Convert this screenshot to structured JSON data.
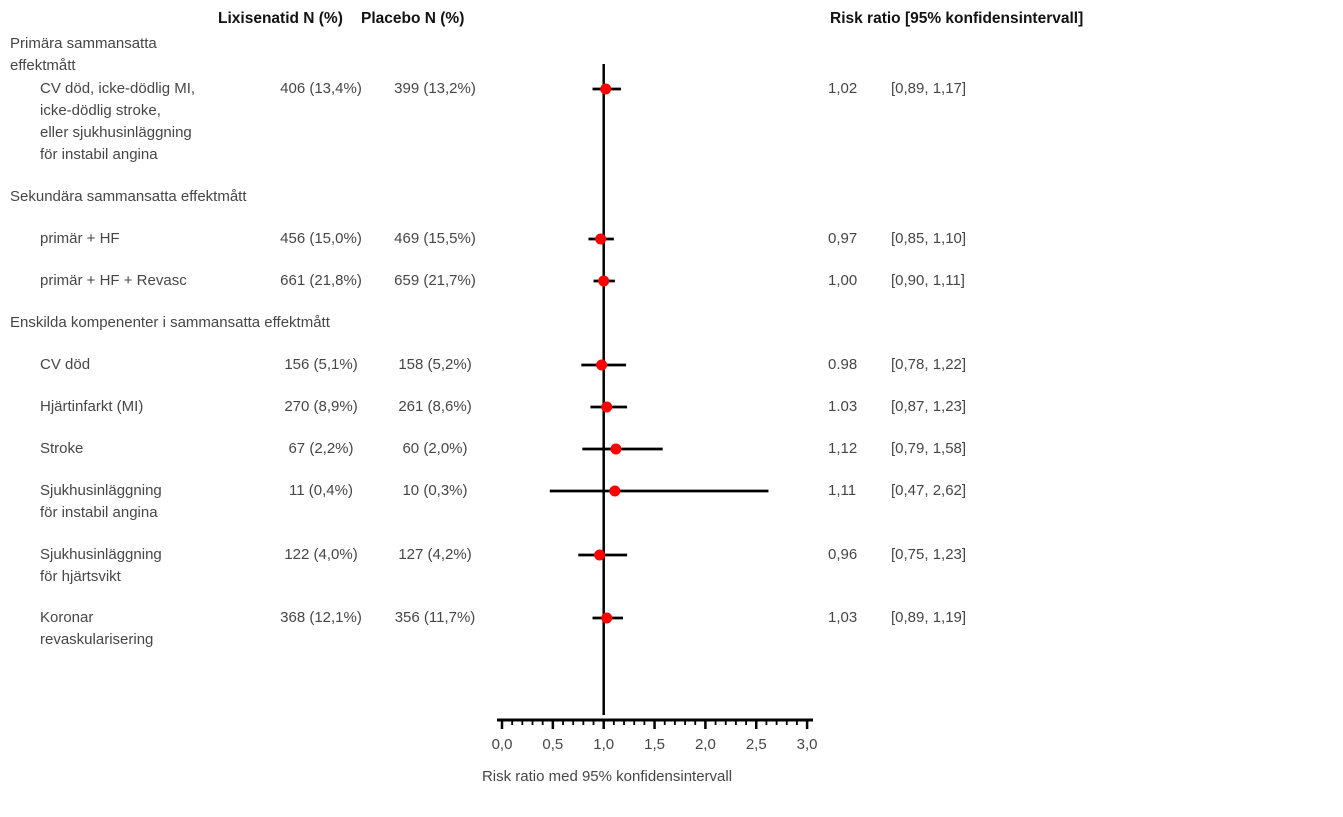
{
  "header": {
    "col_lixisenatid": "Lixisenatid  N (%)",
    "col_placebo": "Placebo  N (%)",
    "col_risk_ratio": "Risk ratio  [95% konfidensintervall]"
  },
  "colors": {
    "marker": "#ff0000",
    "line": "#000000",
    "text": "#464646",
    "header_text": "#121212"
  },
  "chart_data": {
    "type": "scatter",
    "subtype": "forest-plot",
    "axis": {
      "label": "Risk ratio med 95% konfidensintervall",
      "min": 0,
      "max": 3,
      "major_ticks": [
        0,
        0.5,
        1,
        1.5,
        2,
        2.5,
        3
      ],
      "tick_labels": [
        "0,0",
        "0,5",
        "1,0",
        "1,5",
        "2,0",
        "2,5",
        "3,0"
      ],
      "minor_tick_step": 0.1,
      "reference_line": 1.0
    },
    "sections": [
      {
        "label": "Primära sammansatta effektmått",
        "label_lines": [
          "Primära sammansatta",
          "effektmått"
        ],
        "items": [
          {
            "label_lines": [
              "CV död, icke-dödlig MI,",
              "icke-dödlig stroke,",
              "eller sjukhusinläggning",
              "för instabil angina"
            ],
            "lixisenatid": "406 (13,4%)",
            "placebo": "399 (13,2%)",
            "rr": 1.02,
            "ci_low": 0.89,
            "ci_high": 1.17,
            "rr_text": "1,02",
            "ci_text": "[0,89, 1,17]"
          }
        ]
      },
      {
        "label": "Sekundära sammansatta effektmått",
        "label_lines": [
          "Sekundära sammansatta effektmått"
        ],
        "items": [
          {
            "label_lines": [
              "primär + HF"
            ],
            "lixisenatid": "456 (15,0%)",
            "placebo": "469 (15,5%)",
            "rr": 0.97,
            "ci_low": 0.85,
            "ci_high": 1.1,
            "rr_text": "0,97",
            "ci_text": "[0,85, 1,10]"
          },
          {
            "label_lines": [
              "primär + HF + Revasc"
            ],
            "lixisenatid": "661 (21,8%)",
            "placebo": "659 (21,7%)",
            "rr": 1.0,
            "ci_low": 0.9,
            "ci_high": 1.11,
            "rr_text": "1,00",
            "ci_text": "[0,90, 1,11]"
          }
        ]
      },
      {
        "label": "Enskilda kompenenter i sammansatta effektmått",
        "label_lines": [
          "Enskilda kompenenter i sammansatta effektmått"
        ],
        "items": [
          {
            "label_lines": [
              "CV död"
            ],
            "lixisenatid": "156 (5,1%)",
            "placebo": "158 (5,2%)",
            "rr": 0.98,
            "ci_low": 0.78,
            "ci_high": 1.22,
            "rr_text": "0.98",
            "ci_text": "[0,78, 1,22]"
          },
          {
            "label_lines": [
              "Hjärtinfarkt (MI)"
            ],
            "lixisenatid": "270 (8,9%)",
            "placebo": "261 (8,6%)",
            "rr": 1.03,
            "ci_low": 0.87,
            "ci_high": 1.23,
            "rr_text": "1.03",
            "ci_text": "[0,87, 1,23]"
          },
          {
            "label_lines": [
              "Stroke"
            ],
            "lixisenatid": "67 (2,2%)",
            "placebo": "60 (2,0%)",
            "rr": 1.12,
            "ci_low": 0.79,
            "ci_high": 1.58,
            "rr_text": "1,12",
            "ci_text": "[0,79, 1,58]"
          },
          {
            "label_lines": [
              "Sjukhusinläggning",
              "för instabil angina"
            ],
            "lixisenatid": "11 (0,4%)",
            "placebo": "10 (0,3%)",
            "rr": 1.11,
            "ci_low": 0.47,
            "ci_high": 2.62,
            "rr_text": "1,11",
            "ci_text": "[0,47, 2,62]"
          },
          {
            "label_lines": [
              "Sjukhusinläggning",
              "för hjärtsvikt"
            ],
            "lixisenatid": "122 (4,0%)",
            "placebo": "127 (4,2%)",
            "rr": 0.96,
            "ci_low": 0.75,
            "ci_high": 1.23,
            "rr_text": "0,96",
            "ci_text": "[0,75, 1,23]"
          },
          {
            "label_lines": [
              "Koronar",
              "revaskularisering"
            ],
            "lixisenatid": "368 (12,1%)",
            "placebo": "356 (11,7%)",
            "rr": 1.03,
            "ci_low": 0.89,
            "ci_high": 1.19,
            "rr_text": "1,03",
            "ci_text": "[0,89, 1,19]"
          }
        ]
      }
    ]
  }
}
